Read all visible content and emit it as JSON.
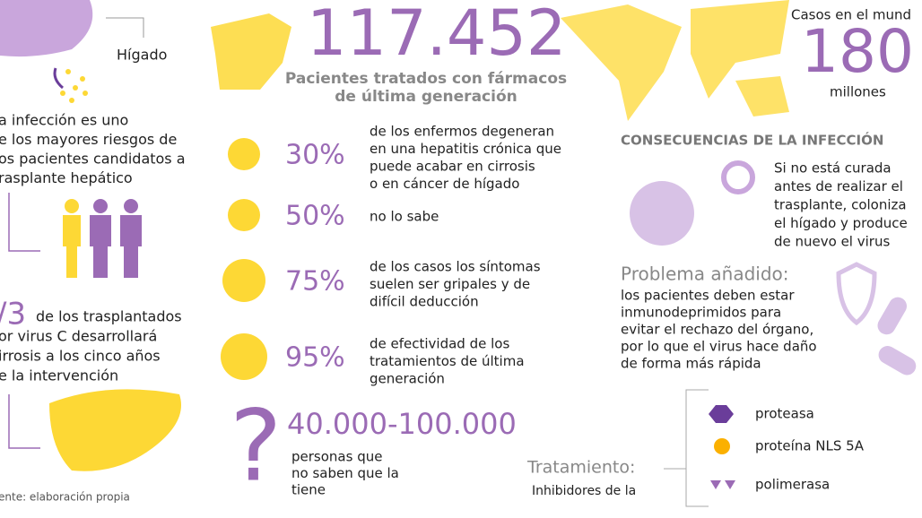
{
  "left": {
    "liver_label": "Hígado",
    "intro_lines": [
      "a infección es uno",
      "e los mayores riesgos de",
      "os pacientes candidatos a",
      "rasplante hepático"
    ],
    "fraction": "/3",
    "fraction_lines": [
      "de los trasplantados",
      "or virus C desarrollará",
      "irrosis a los cinco años",
      "e la intervención"
    ],
    "source": "ente: elaboración propia"
  },
  "center": {
    "headline": "117.452",
    "subtitle_lines": [
      "Pacientes tratados con fármacos",
      "de última generación"
    ],
    "stats": [
      {
        "value": "30%",
        "lines": [
          "de los enfermos degeneran",
          "en una hepatitis crónica que",
          "puede acabar en cirrosis",
          "o en cáncer de hígado"
        ]
      },
      {
        "value": "50%",
        "lines": [
          "no lo sabe"
        ]
      },
      {
        "value": "75%",
        "lines": [
          "de los casos los síntomas",
          "suelen ser gripales y de",
          "difícil deducción"
        ]
      },
      {
        "value": "95%",
        "lines": [
          "de efectividad de los",
          "tratamientos de última",
          "generación"
        ]
      }
    ],
    "unknown_symbol": "?",
    "unknown_number": "40.000-100.000",
    "unknown_lines": [
      "personas que",
      "no saben que la",
      "tiene"
    ]
  },
  "right": {
    "world_label": "Casos en el mund",
    "world_number": "180",
    "world_unit": "millones",
    "consequences_title": "CONSECUENCIAS DE LA INFECCIÓN",
    "consequences_lines": [
      "Si no está curada",
      "antes de realizar el",
      "trasplante, coloniza",
      "el hígado y produce",
      "de nuevo el virus"
    ],
    "problem_title": "Problema añadido:",
    "problem_lines": [
      "los pacientes deben estar",
      "inmunodeprimidos para",
      "evitar el rechazo del órgano,",
      "por lo que el virus hace daño",
      "de forma más rápida"
    ],
    "treatment_title": "Tratamiento:",
    "treatment_subtitle": "Inhibidores de la",
    "treatment_items": [
      "proteasa",
      "proteína NLS 5A",
      "polimerasa"
    ]
  }
}
